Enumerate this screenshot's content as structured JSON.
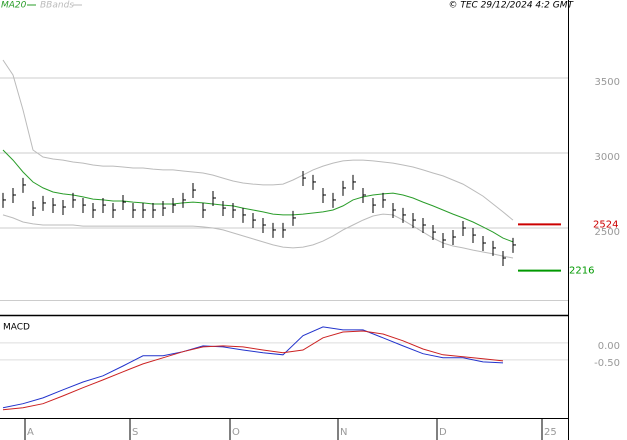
{
  "header": {
    "ma_label": "MA20",
    "bands_label": "BBands",
    "credit": "© TEC 29/12/2024 4:2 GMT"
  },
  "chart_data": [
    {
      "type": "ohlc",
      "xlim": [
        -0.3,
        56.5
      ],
      "xticks": [
        {
          "value": 2.2,
          "label": "A"
        },
        {
          "value": 12.7,
          "label": "S"
        },
        {
          "value": 22.7,
          "label": "O"
        },
        {
          "value": 33.5,
          "label": "N"
        },
        {
          "value": 43.4,
          "label": "D"
        },
        {
          "value": 53.9,
          "label": "25"
        }
      ],
      "ylim": [
        1920,
        4020
      ],
      "yticks": [
        2500,
        3000,
        3500
      ],
      "grid": true,
      "close": [
        2687,
        2720,
        2787,
        2633,
        2667,
        2653,
        2640,
        2687,
        2653,
        2620,
        2653,
        2620,
        2673,
        2620,
        2620,
        2620,
        2633,
        2653,
        2687,
        2753,
        2620,
        2700,
        2633,
        2620,
        2587,
        2553,
        2520,
        2487,
        2487,
        2567,
        2833,
        2807,
        2720,
        2687,
        2767,
        2807,
        2720,
        2653,
        2687,
        2620,
        2587,
        2553,
        2520,
        2473,
        2420,
        2440,
        2500,
        2453,
        2400,
        2367,
        2300,
        2387
      ],
      "high": [
        2734,
        2767,
        2834,
        2680,
        2714,
        2700,
        2687,
        2734,
        2700,
        2667,
        2700,
        2667,
        2720,
        2667,
        2667,
        2667,
        2680,
        2700,
        2734,
        2800,
        2667,
        2747,
        2680,
        2667,
        2634,
        2600,
        2567,
        2534,
        2534,
        2614,
        2880,
        2854,
        2767,
        2734,
        2814,
        2854,
        2767,
        2700,
        2734,
        2667,
        2634,
        2600,
        2567,
        2520,
        2467,
        2487,
        2547,
        2500,
        2447,
        2414,
        2347,
        2434
      ],
      "low": [
        2634,
        2667,
        2734,
        2580,
        2614,
        2600,
        2587,
        2634,
        2600,
        2567,
        2600,
        2567,
        2620,
        2567,
        2567,
        2567,
        2580,
        2600,
        2634,
        2700,
        2567,
        2647,
        2580,
        2567,
        2534,
        2500,
        2467,
        2434,
        2434,
        2514,
        2780,
        2754,
        2667,
        2634,
        2714,
        2754,
        2667,
        2600,
        2634,
        2567,
        2534,
        2500,
        2467,
        2420,
        2367,
        2387,
        2447,
        2400,
        2347,
        2314,
        2247,
        2334
      ],
      "price_color": "#000000",
      "series": [
        {
          "name": "MA20",
          "color": "#2a9d2a",
          "values": [
            3020,
            2953,
            2873,
            2807,
            2767,
            2740,
            2727,
            2720,
            2707,
            2693,
            2687,
            2680,
            2680,
            2673,
            2667,
            2660,
            2660,
            2660,
            2667,
            2673,
            2667,
            2660,
            2653,
            2647,
            2633,
            2620,
            2607,
            2593,
            2587,
            2587,
            2593,
            2600,
            2607,
            2620,
            2647,
            2687,
            2707,
            2720,
            2727,
            2733,
            2720,
            2700,
            2673,
            2647,
            2620,
            2593,
            2567,
            2540,
            2507,
            2473,
            2433,
            2407
          ]
        },
        {
          "name": "BBands",
          "color": "#bbbbbb",
          "values": [
            3620,
            3520,
            3287,
            3020,
            2973,
            2960,
            2953,
            2940,
            2933,
            2920,
            2913,
            2913,
            2907,
            2900,
            2900,
            2893,
            2887,
            2887,
            2880,
            2873,
            2867,
            2853,
            2833,
            2813,
            2800,
            2793,
            2787,
            2787,
            2793,
            2820,
            2853,
            2887,
            2913,
            2933,
            2947,
            2953,
            2953,
            2947,
            2940,
            2933,
            2920,
            2907,
            2887,
            2867,
            2847,
            2820,
            2793,
            2753,
            2713,
            2660,
            2607,
            2553
          ]
        },
        {
          "color": "#bbbbbb",
          "values": [
            2587,
            2567,
            2540,
            2527,
            2520,
            2520,
            2520,
            2520,
            2513,
            2513,
            2513,
            2513,
            2513,
            2513,
            2513,
            2513,
            2513,
            2513,
            2513,
            2513,
            2507,
            2500,
            2487,
            2467,
            2447,
            2427,
            2407,
            2387,
            2373,
            2367,
            2373,
            2387,
            2413,
            2447,
            2487,
            2520,
            2553,
            2580,
            2593,
            2587,
            2553,
            2513,
            2473,
            2433,
            2400,
            2380,
            2367,
            2353,
            2340,
            2327,
            2313,
            2300
          ]
        }
      ],
      "levels": [
        {
          "value": 2524,
          "label": "2524",
          "color": "#cc0000"
        },
        {
          "value": 2216,
          "label": "2216",
          "color": "#009900"
        }
      ]
    },
    {
      "type": "line",
      "title": "MACD",
      "x": [
        0,
        2,
        4,
        6,
        8,
        10,
        12,
        14,
        16,
        18,
        20,
        22,
        24,
        26,
        28,
        30,
        32,
        34,
        36,
        38,
        40,
        42,
        44,
        46,
        48,
        50
      ],
      "xlim": [
        -0.3,
        56.5
      ],
      "ylim": [
        -2.21,
        0.79
      ],
      "yticks": [
        {
          "value": 0,
          "label": "0.00"
        },
        {
          "value": -0.5,
          "label": "-0.50"
        }
      ],
      "series": [
        {
          "color": "#2233cc",
          "values": [
            -1.91,
            -1.79,
            -1.62,
            -1.38,
            -1.15,
            -0.97,
            -0.68,
            -0.38,
            -0.38,
            -0.26,
            -0.09,
            -0.12,
            -0.21,
            -0.29,
            -0.35,
            0.21,
            0.47,
            0.38,
            0.38,
            0.15,
            -0.09,
            -0.32,
            -0.44,
            -0.44,
            -0.56,
            -0.59
          ]
        },
        {
          "color": "#cc2222",
          "values": [
            -1.97,
            -1.91,
            -1.79,
            -1.56,
            -1.32,
            -1.09,
            -0.85,
            -0.62,
            -0.44,
            -0.26,
            -0.12,
            -0.09,
            -0.12,
            -0.21,
            -0.29,
            -0.21,
            0.15,
            0.32,
            0.35,
            0.26,
            0.06,
            -0.18,
            -0.35,
            -0.41,
            -0.47,
            -0.53
          ]
        }
      ]
    }
  ]
}
